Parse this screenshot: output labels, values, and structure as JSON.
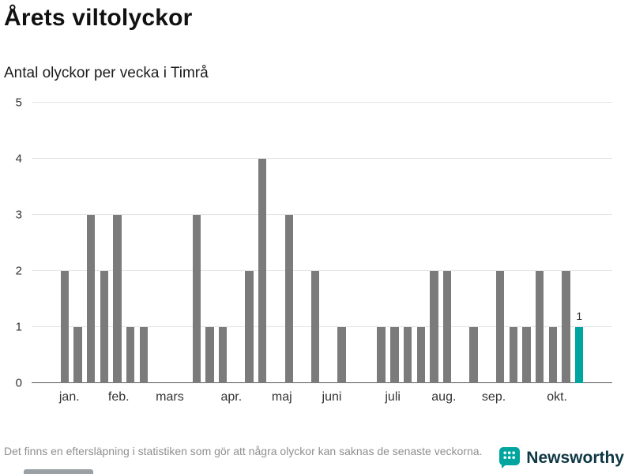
{
  "header": {
    "title": "Årets viltolyckor",
    "subtitle": "Antal olyckor per vecka i Timrå"
  },
  "footnote": "Det finns en eftersläpning i statistiken som gör att några olyckor kan saknas de senaste veckorna.",
  "brand": {
    "name": "Newsworthy",
    "logo_teal": "#00a59f",
    "wordmark_color": "#0e3744"
  },
  "chart_data": {
    "type": "bar",
    "x_unit": "week",
    "title": "Årets viltolyckor",
    "subtitle": "Antal olyckor per vecka i Timrå",
    "ylabel": "Antal olyckor",
    "ylim": [
      0,
      5
    ],
    "yticks": [
      0,
      1,
      2,
      3,
      4,
      5
    ],
    "grid": true,
    "values": [
      0,
      0,
      2,
      1,
      3,
      2,
      3,
      1,
      1,
      0,
      0,
      0,
      3,
      1,
      1,
      0,
      2,
      4,
      0,
      3,
      0,
      2,
      0,
      1,
      0,
      0,
      1,
      1,
      1,
      1,
      2,
      2,
      0,
      1,
      0,
      2,
      1,
      1,
      2,
      1,
      2,
      1,
      0,
      0
    ],
    "highlight_index": 41,
    "highlight_label": "1",
    "months": [
      {
        "label": "jan.",
        "pos_pct": 6.5
      },
      {
        "label": "feb.",
        "pos_pct": 15.0
      },
      {
        "label": "mars",
        "pos_pct": 23.8
      },
      {
        "label": "apr.",
        "pos_pct": 34.4
      },
      {
        "label": "maj",
        "pos_pct": 43.1
      },
      {
        "label": "juni",
        "pos_pct": 51.7
      },
      {
        "label": "juli",
        "pos_pct": 62.2
      },
      {
        "label": "aug.",
        "pos_pct": 71.0
      },
      {
        "label": "sep.",
        "pos_pct": 79.6
      },
      {
        "label": "okt.",
        "pos_pct": 90.5
      }
    ],
    "colors": {
      "bar": "#7b7b7b",
      "highlight": "#00a59f",
      "grid": "#e4e4e4",
      "axis": "#555555"
    }
  }
}
